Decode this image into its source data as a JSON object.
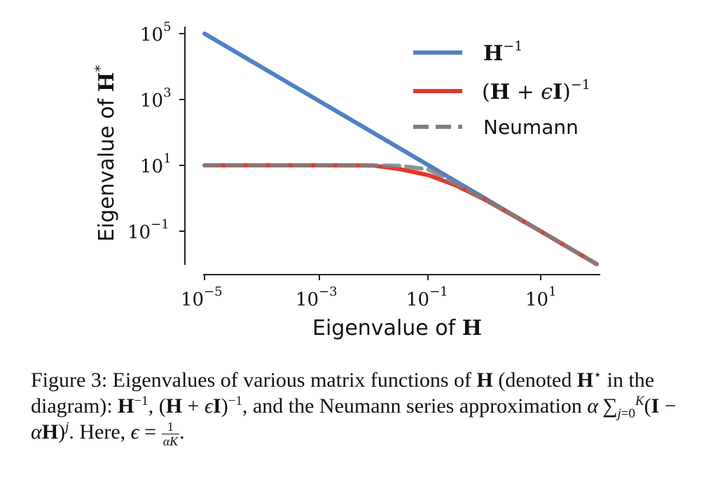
{
  "chart_data": {
    "type": "line",
    "xscale": "log",
    "yscale": "log",
    "xlim": [
      1e-05,
      100
    ],
    "ylim": [
      0.01,
      100000
    ],
    "xticks": [
      "10^-5",
      "10^-3",
      "10^-1",
      "10^1"
    ],
    "yticks": [
      "10^5",
      "10^3",
      "10^1",
      "10^-1"
    ],
    "xlabel": "Eigenvalue of H",
    "ylabel": "Eigenvalue of H*",
    "legend": "top-right",
    "grid": false,
    "series": [
      {
        "name": "H^-1",
        "color": "#4f81c4",
        "style": "solid",
        "x": [
          1e-05,
          0.0001,
          0.001,
          0.01,
          0.1,
          1,
          10,
          100
        ],
        "y": [
          100000,
          10000,
          1000,
          100,
          10,
          1,
          0.1,
          0.01
        ]
      },
      {
        "name": "(H + εI)^-1",
        "color": "#e0392c",
        "style": "solid",
        "x": [
          1e-05,
          0.0001,
          0.001,
          0.01,
          0.03,
          0.1,
          0.3,
          1,
          3,
          10,
          100
        ],
        "y": [
          10,
          10,
          9.99,
          9.9,
          7.7,
          5,
          2.5,
          0.91,
          0.32,
          0.099,
          0.01
        ]
      },
      {
        "name": "Neumann",
        "color": "#808080",
        "style": "dashed",
        "x": [
          1e-05,
          0.0001,
          0.001,
          0.01,
          0.03,
          0.1,
          0.3,
          1,
          3,
          10,
          100
        ],
        "y": [
          10,
          10,
          9.99,
          9.9,
          9.7,
          7.5,
          2.8,
          0.93,
          0.33,
          0.1,
          0.01
        ]
      }
    ]
  },
  "caption": {
    "label": "Figure 3:",
    "t1": " Eigenvalues of various matrix functions of ",
    "H": "H",
    "t2": " (denoted ",
    "t3": " in the diagram): ",
    "t4": ", ",
    "t5": ", and the Neumann series approximation ",
    "t6": ". Here, ",
    "alpha": "α",
    "epsilon": "ϵ",
    "one": "1",
    "alphaK": "αK"
  }
}
